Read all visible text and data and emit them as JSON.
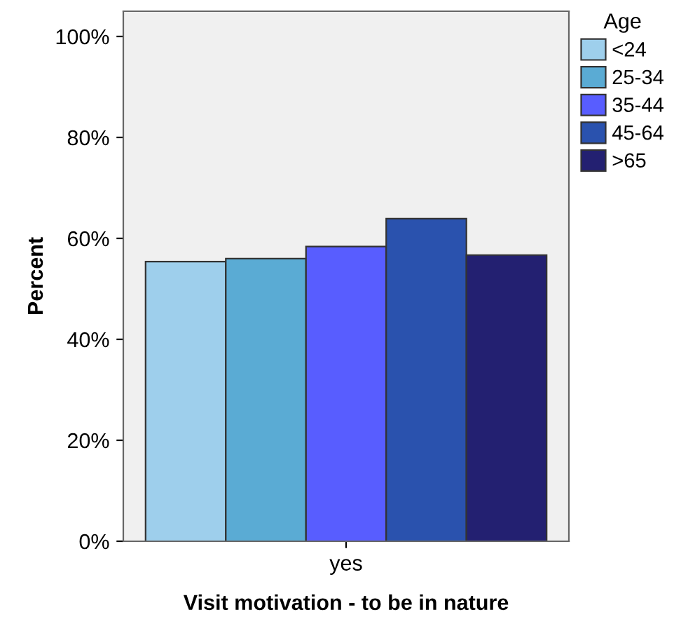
{
  "chart_data": {
    "type": "bar",
    "xlabel": "Visit motivation - to be in nature",
    "ylabel": "Percent",
    "legend_title": "Age",
    "categories": [
      "yes"
    ],
    "series": [
      {
        "name": "<24",
        "color": "#9ecfec",
        "values": [
          55.4
        ]
      },
      {
        "name": "25-34",
        "color": "#5aabd4",
        "values": [
          56.0
        ]
      },
      {
        "name": "35-44",
        "color": "#585dff",
        "values": [
          58.4
        ]
      },
      {
        "name": "45-64",
        "color": "#2a52ae",
        "values": [
          63.9
        ]
      },
      {
        "name": ">65",
        "color": "#232071",
        "values": [
          56.7
        ]
      }
    ],
    "ylim": [
      0,
      105
    ],
    "yticks": [
      {
        "value": 0,
        "label": "0%"
      },
      {
        "value": 20,
        "label": "20%"
      },
      {
        "value": 40,
        "label": "40%"
      },
      {
        "value": 60,
        "label": "60%"
      },
      {
        "value": 80,
        "label": "80%"
      },
      {
        "value": 100,
        "label": "100%"
      }
    ],
    "grid": false,
    "legend": "top right"
  }
}
